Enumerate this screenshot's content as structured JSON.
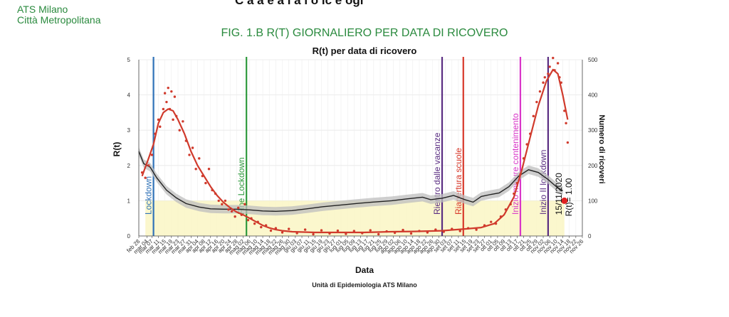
{
  "header": {
    "org_line1": "ATS Milano",
    "org_line2": "Città Metropolitana",
    "top_cut": "C a  a  e   a   i  a  i   o   ic  e  ogi",
    "figure_title": "FIG. 1.B R(T) GIORNALIERO PER DATA DI RICOVERO"
  },
  "colors": {
    "rt": "#d03a2c",
    "ricoveri": "#222222",
    "band": "#bdbdbd",
    "highlight": "#fbf6c8",
    "lockdown": "#2f72b8",
    "fine_lockdown": "#2f9a3e",
    "vacanze": "#5a2d82",
    "scuole": "#d8392b",
    "contenimento": "#d935c8",
    "lockdown2": "#5a2d82"
  },
  "chart_data": {
    "type": "line",
    "title": "R(t) per data di ricovero",
    "xlabel": "Data",
    "ylabel": "R(t)",
    "ylabel_right": "Numero di ricoveri",
    "caption": "Unità di Epidemiologia ATS Milano",
    "ylim": [
      0,
      5
    ],
    "ylim_right": [
      0,
      500
    ],
    "yticks": [
      "0",
      "1",
      "2",
      "3",
      "4",
      "5"
    ],
    "yticks_right": [
      "0",
      "100",
      "200",
      "300",
      "400",
      "500"
    ],
    "xlim": [
      "2020-02-28",
      "2020-11-26"
    ],
    "x_tick_labels": [
      "feb 28",
      "mar 04",
      "mar 07",
      "mar 11",
      "mar 15",
      "mar 19",
      "mar 23",
      "mar 27",
      "mar 31",
      "apr 04",
      "apr 08",
      "apr 12",
      "apr 16",
      "apr 20",
      "apr 24",
      "apr 28",
      "mag 02",
      "mag 06",
      "mag 10",
      "mag 14",
      "mag 18",
      "mag 22",
      "mag 26",
      "mag 30",
      "giu 03",
      "giu 07",
      "giu 11",
      "giu 15",
      "giu 19",
      "giu 23",
      "giu 27",
      "lug 01",
      "lug 05",
      "lug 09",
      "lug 13",
      "lug 17",
      "lug 21",
      "lug 25",
      "lug 29",
      "ago 02",
      "ago 06",
      "ago 10",
      "ago 14",
      "ago 18",
      "ago 22",
      "ago 26",
      "ago 30",
      "set 03",
      "set 07",
      "set 11",
      "set 15",
      "set 19",
      "set 23",
      "set 27",
      "ott 01",
      "ott 05",
      "ott 09",
      "ott 13",
      "ott 17",
      "ott 21",
      "ott 25",
      "ott 29",
      "nov 02",
      "nov 06",
      "nov 10",
      "nov 14",
      "nov 18",
      "nov 22",
      "nov 26"
    ],
    "grid": true,
    "events": [
      {
        "date": "2020-03-08",
        "label": "Lockdown",
        "color_key": "lockdown"
      },
      {
        "date": "2020-05-04",
        "label": "Fine Lockdown",
        "color_key": "fine_lockdown"
      },
      {
        "date": "2020-09-01",
        "label": "Rientro dalle vacanze",
        "color_key": "vacanze"
      },
      {
        "date": "2020-09-14",
        "label": "Riapertura scuole",
        "color_key": "scuole"
      },
      {
        "date": "2020-10-19",
        "label": "Inizio misure contenimento",
        "color_key": "contenimento"
      },
      {
        "date": "2020-11-05",
        "label": "Inizio II lockdown",
        "color_key": "lockdown2"
      }
    ],
    "highlight_band": {
      "x": [
        "2020-03-03",
        "2020-11-15"
      ],
      "y": [
        0,
        1
      ]
    },
    "annotation": {
      "date": "2020-11-15",
      "value": 1.0,
      "date_label": "15/11/2020",
      "value_label": "R(t)= 1.00"
    },
    "series": [
      {
        "name": "R(t)",
        "color_key": "rt",
        "axis": "left",
        "points": [
          [
            "2020-03-01",
            1.7
          ],
          [
            "2020-03-05",
            2.2
          ],
          [
            "2020-03-08",
            2.6
          ],
          [
            "2020-03-11",
            3.2
          ],
          [
            "2020-03-14",
            3.5
          ],
          [
            "2020-03-17",
            3.6
          ],
          [
            "2020-03-20",
            3.55
          ],
          [
            "2020-03-23",
            3.3
          ],
          [
            "2020-03-27",
            2.9
          ],
          [
            "2020-03-31",
            2.4
          ],
          [
            "2020-04-04",
            2.0
          ],
          [
            "2020-04-08",
            1.7
          ],
          [
            "2020-04-12",
            1.4
          ],
          [
            "2020-04-16",
            1.15
          ],
          [
            "2020-04-20",
            0.95
          ],
          [
            "2020-04-24",
            0.8
          ],
          [
            "2020-04-28",
            0.68
          ],
          [
            "2020-05-02",
            0.6
          ],
          [
            "2020-05-06",
            0.5
          ],
          [
            "2020-05-10",
            0.4
          ],
          [
            "2020-05-14",
            0.3
          ],
          [
            "2020-05-18",
            0.23
          ],
          [
            "2020-05-22",
            0.18
          ],
          [
            "2020-05-26",
            0.15
          ],
          [
            "2020-06-01",
            0.12
          ],
          [
            "2020-06-15",
            0.1
          ],
          [
            "2020-07-01",
            0.1
          ],
          [
            "2020-07-15",
            0.1
          ],
          [
            "2020-08-01",
            0.12
          ],
          [
            "2020-08-15",
            0.13
          ],
          [
            "2020-09-01",
            0.15
          ],
          [
            "2020-09-15",
            0.2
          ],
          [
            "2020-09-25",
            0.24
          ],
          [
            "2020-10-03",
            0.35
          ],
          [
            "2020-10-09",
            0.6
          ],
          [
            "2020-10-15",
            1.1
          ],
          [
            "2020-10-20",
            1.9
          ],
          [
            "2020-10-25",
            2.8
          ],
          [
            "2020-10-30",
            3.7
          ],
          [
            "2020-11-04",
            4.4
          ],
          [
            "2020-11-08",
            4.72
          ],
          [
            "2020-11-11",
            4.6
          ],
          [
            "2020-11-14",
            4.0
          ],
          [
            "2020-11-17",
            3.3
          ]
        ],
        "scatter": [
          [
            "2020-03-01",
            1.8
          ],
          [
            "2020-03-03",
            1.65
          ],
          [
            "2020-03-05",
            2.0
          ],
          [
            "2020-03-07",
            2.3
          ],
          [
            "2020-03-09",
            2.9
          ],
          [
            "2020-03-11",
            3.3
          ],
          [
            "2020-03-12",
            3.1
          ],
          [
            "2020-03-14",
            3.6
          ],
          [
            "2020-03-15",
            4.05
          ],
          [
            "2020-03-16",
            3.8
          ],
          [
            "2020-03-17",
            4.2
          ],
          [
            "2020-03-18",
            3.6
          ],
          [
            "2020-03-19",
            4.1
          ],
          [
            "2020-03-20",
            3.3
          ],
          [
            "2020-03-21",
            3.95
          ],
          [
            "2020-03-22",
            3.4
          ],
          [
            "2020-03-24",
            3.0
          ],
          [
            "2020-03-26",
            3.25
          ],
          [
            "2020-03-28",
            2.7
          ],
          [
            "2020-03-30",
            2.3
          ],
          [
            "2020-04-01",
            2.5
          ],
          [
            "2020-04-03",
            1.9
          ],
          [
            "2020-04-05",
            2.2
          ],
          [
            "2020-04-07",
            1.7
          ],
          [
            "2020-04-09",
            1.5
          ],
          [
            "2020-04-11",
            1.9
          ],
          [
            "2020-04-13",
            1.3
          ],
          [
            "2020-04-15",
            1.2
          ],
          [
            "2020-04-17",
            1.0
          ],
          [
            "2020-04-19",
            0.9
          ],
          [
            "2020-04-21",
            1.0
          ],
          [
            "2020-04-23",
            0.75
          ],
          [
            "2020-04-25",
            0.7
          ],
          [
            "2020-04-27",
            0.55
          ],
          [
            "2020-04-29",
            0.8
          ],
          [
            "2020-05-01",
            0.6
          ],
          [
            "2020-05-03",
            0.9
          ],
          [
            "2020-05-05",
            0.45
          ],
          [
            "2020-05-07",
            0.5
          ],
          [
            "2020-05-09",
            0.35
          ],
          [
            "2020-05-11",
            0.4
          ],
          [
            "2020-05-13",
            0.25
          ],
          [
            "2020-05-16",
            0.3
          ],
          [
            "2020-05-19",
            0.15
          ],
          [
            "2020-05-22",
            0.22
          ],
          [
            "2020-05-26",
            0.1
          ],
          [
            "2020-05-30",
            0.2
          ],
          [
            "2020-06-04",
            0.08
          ],
          [
            "2020-06-09",
            0.18
          ],
          [
            "2020-06-14",
            0.05
          ],
          [
            "2020-06-19",
            0.16
          ],
          [
            "2020-06-24",
            0.07
          ],
          [
            "2020-06-29",
            0.15
          ],
          [
            "2020-07-04",
            0.06
          ],
          [
            "2020-07-09",
            0.14
          ],
          [
            "2020-07-14",
            0.08
          ],
          [
            "2020-07-19",
            0.16
          ],
          [
            "2020-07-24",
            0.05
          ],
          [
            "2020-07-29",
            0.13
          ],
          [
            "2020-08-03",
            0.09
          ],
          [
            "2020-08-08",
            0.17
          ],
          [
            "2020-08-13",
            0.07
          ],
          [
            "2020-08-18",
            0.14
          ],
          [
            "2020-08-23",
            0.1
          ],
          [
            "2020-08-28",
            0.18
          ],
          [
            "2020-09-02",
            0.12
          ],
          [
            "2020-09-07",
            0.2
          ],
          [
            "2020-09-12",
            0.14
          ],
          [
            "2020-09-17",
            0.22
          ],
          [
            "2020-09-22",
            0.18
          ],
          [
            "2020-09-27",
            0.3
          ],
          [
            "2020-10-01",
            0.4
          ],
          [
            "2020-10-04",
            0.35
          ],
          [
            "2020-10-07",
            0.55
          ],
          [
            "2020-10-10",
            0.75
          ],
          [
            "2020-10-13",
            0.9
          ],
          [
            "2020-10-15",
            1.2
          ],
          [
            "2020-10-17",
            1.5
          ],
          [
            "2020-10-19",
            1.75
          ],
          [
            "2020-10-21",
            2.2
          ],
          [
            "2020-10-23",
            2.6
          ],
          [
            "2020-10-25",
            2.9
          ],
          [
            "2020-10-27",
            3.4
          ],
          [
            "2020-10-29",
            3.8
          ],
          [
            "2020-10-31",
            4.1
          ],
          [
            "2020-11-02",
            4.35
          ],
          [
            "2020-11-03",
            4.5
          ],
          [
            "2020-11-05",
            4.6
          ],
          [
            "2020-11-06",
            4.8
          ],
          [
            "2020-11-08",
            5.05
          ],
          [
            "2020-11-09",
            4.7
          ],
          [
            "2020-11-11",
            4.9
          ],
          [
            "2020-11-12",
            4.5
          ],
          [
            "2020-11-13",
            4.35
          ],
          [
            "2020-11-15",
            3.55
          ],
          [
            "2020-11-16",
            3.2
          ],
          [
            "2020-11-17",
            2.65
          ]
        ]
      },
      {
        "name": "Numero di ricoveri",
        "color_key": "ricoveri",
        "axis": "right",
        "points": [
          [
            "2020-02-28",
            240
          ],
          [
            "2020-03-02",
            205
          ],
          [
            "2020-03-06",
            195
          ],
          [
            "2020-03-10",
            165
          ],
          [
            "2020-03-16",
            130
          ],
          [
            "2020-03-22",
            108
          ],
          [
            "2020-03-28",
            92
          ],
          [
            "2020-04-05",
            82
          ],
          [
            "2020-04-12",
            77
          ],
          [
            "2020-04-20",
            76
          ],
          [
            "2020-04-28",
            76
          ],
          [
            "2020-05-06",
            74
          ],
          [
            "2020-05-14",
            71
          ],
          [
            "2020-05-22",
            70
          ],
          [
            "2020-06-01",
            72
          ],
          [
            "2020-06-10",
            77
          ],
          [
            "2020-06-20",
            83
          ],
          [
            "2020-07-01",
            88
          ],
          [
            "2020-07-10",
            92
          ],
          [
            "2020-07-20",
            96
          ],
          [
            "2020-08-01",
            100
          ],
          [
            "2020-08-10",
            105
          ],
          [
            "2020-08-20",
            110
          ],
          [
            "2020-08-25",
            103
          ],
          [
            "2020-09-01",
            107
          ],
          [
            "2020-09-08",
            115
          ],
          [
            "2020-09-15",
            103
          ],
          [
            "2020-09-20",
            96
          ],
          [
            "2020-09-25",
            112
          ],
          [
            "2020-10-01",
            118
          ],
          [
            "2020-10-06",
            122
          ],
          [
            "2020-10-12",
            140
          ],
          [
            "2020-10-18",
            170
          ],
          [
            "2020-10-24",
            188
          ],
          [
            "2020-10-30",
            180
          ],
          [
            "2020-11-05",
            160
          ],
          [
            "2020-11-10",
            140
          ],
          [
            "2020-11-14",
            128
          ]
        ]
      }
    ]
  }
}
